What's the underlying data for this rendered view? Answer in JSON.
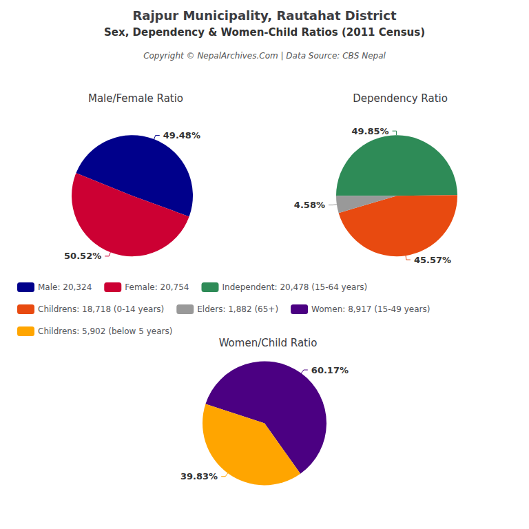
{
  "title": "Rajpur Municipality, Rautahat District",
  "subtitle": "Sex, Dependency & Women-Child Ratios (2011 Census)",
  "annotations": [
    "Copyright © NepalArchives.Com | Data Source: CBS Nepal"
  ],
  "chart_data": [
    {
      "type": "pie",
      "title": "Male/Female Ratio",
      "categories": [
        "Male: 20,324",
        "Female: 20,754"
      ],
      "values": [
        49.48,
        50.52
      ],
      "value_labels": [
        "49.48%",
        "50.52%"
      ],
      "colors": [
        "#00008B",
        "#CC0033"
      ],
      "data_labels": true,
      "legend": "center"
    },
    {
      "type": "pie",
      "title": "Dependency Ratio",
      "categories": [
        "Independent: 20,478 (15-64 years)",
        "Childrens: 18,718 (0-14 years)",
        "Elders: 1,882 (65+)"
      ],
      "values": [
        49.85,
        45.57,
        4.58
      ],
      "value_labels": [
        "49.85%",
        "45.57%",
        "4.58%"
      ],
      "colors": [
        "#2E8B57",
        "#E84A10",
        "#999999"
      ],
      "data_labels": true,
      "legend": "center"
    },
    {
      "type": "pie",
      "title": "Women/Child Ratio",
      "categories": [
        "Women: 8,917 (15-49 years)",
        "Childrens: 5,902 (below 5 years)"
      ],
      "values": [
        60.17,
        39.83
      ],
      "value_labels": [
        "60.17%",
        "39.83%"
      ],
      "colors": [
        "#4B0082",
        "#FFA500"
      ],
      "data_labels": true,
      "legend": "center"
    }
  ]
}
